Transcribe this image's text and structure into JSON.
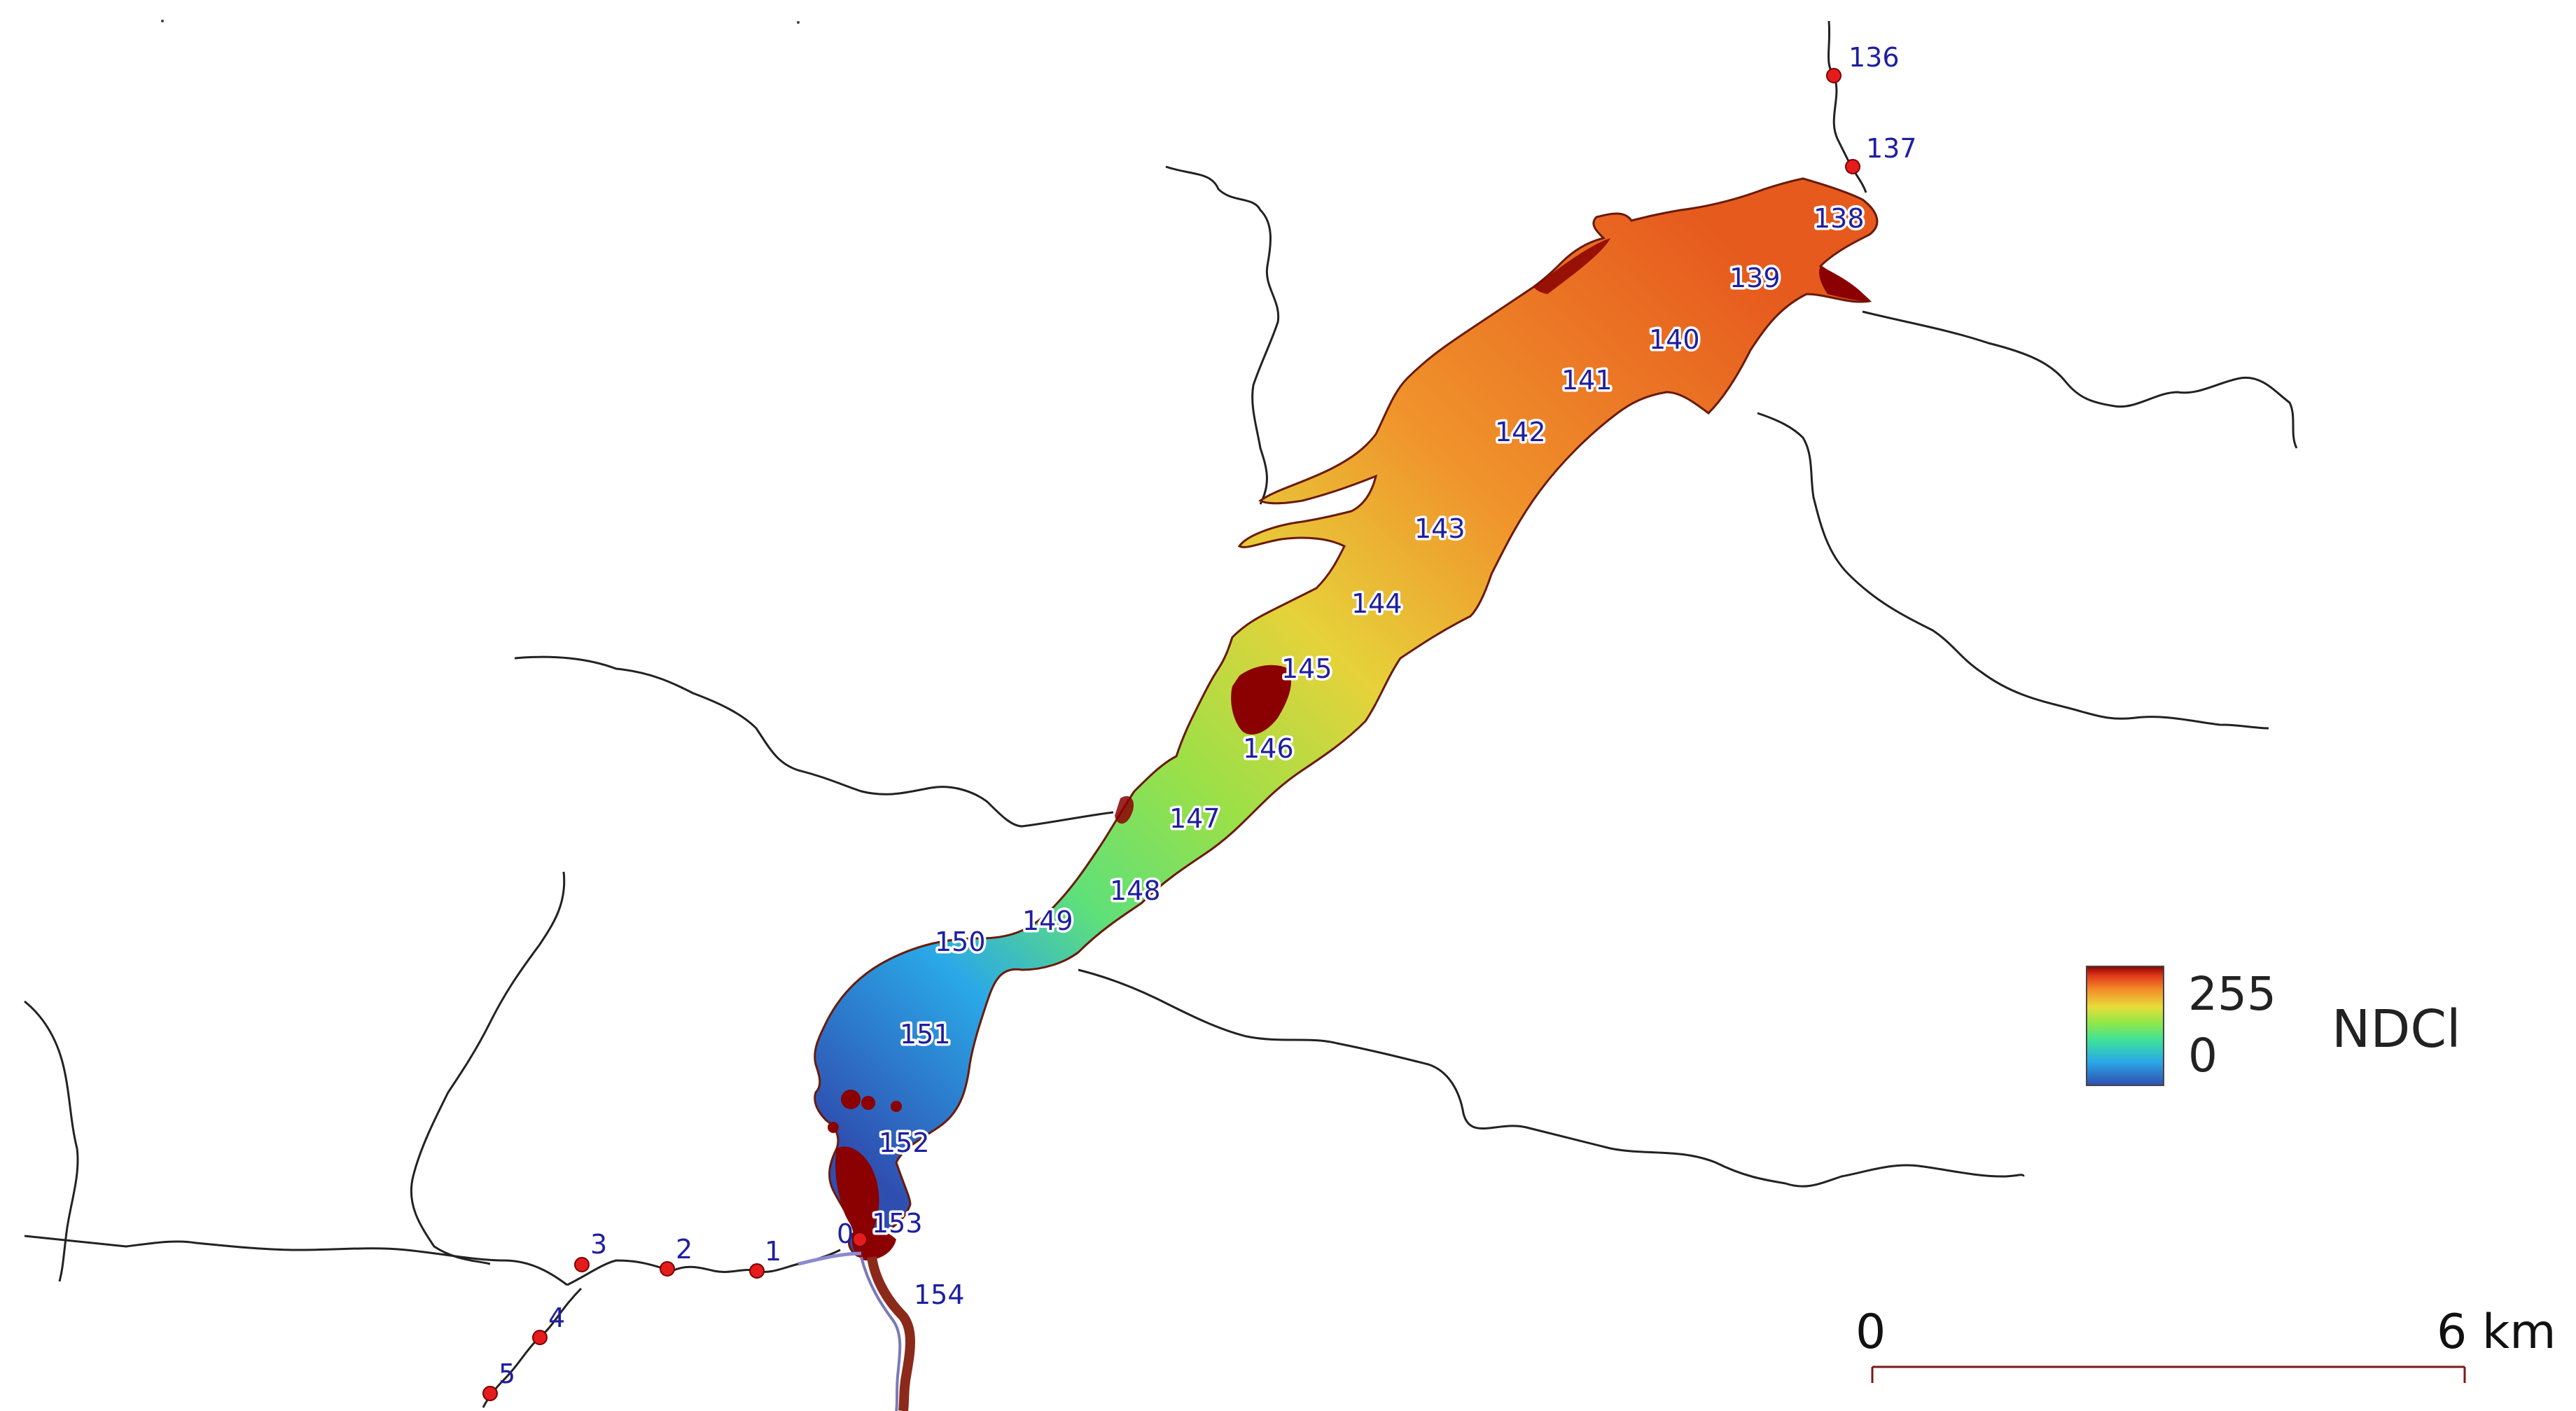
{
  "legend": {
    "title": "NDCl",
    "max_label": "255",
    "min_label": "0",
    "max_value": 255,
    "min_value": 0,
    "gradient": [
      "#2f4fb0",
      "#2aa8e8",
      "#3ee29a",
      "#8ee84a",
      "#e8dc3a",
      "#f4902a",
      "#e03a1a",
      "#8b0000"
    ]
  },
  "scale_bar": {
    "start_label": "0",
    "end_label": "6 km",
    "color": "#7a1a1a"
  },
  "reservoir_km_labels": [
    "136",
    "137",
    "138",
    "139",
    "140",
    "141",
    "142",
    "143",
    "144",
    "145",
    "146",
    "147",
    "148",
    "149",
    "150",
    "151",
    "152",
    "153",
    "154"
  ],
  "tributary_point_labels": [
    "0",
    "1",
    "2",
    "3",
    "4",
    "5"
  ],
  "colors": {
    "river_line": "#222222",
    "marker": "#e51c1c",
    "label_text": "#1f1fa0",
    "high_value": "#8b0000"
  }
}
